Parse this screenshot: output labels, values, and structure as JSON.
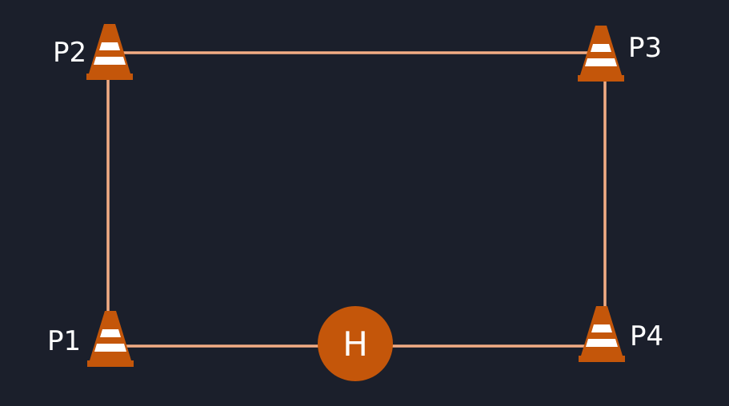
{
  "diagram": {
    "background_color": "#1b1f2b",
    "path_color": "#f2ac84",
    "cone_color": "#c4560a",
    "stripe_color": "#ffffff",
    "home_color": "#c4560a",
    "icon": "traffic-cone-icon"
  },
  "waypoints": [
    {
      "id": "p1",
      "label": "P1"
    },
    {
      "id": "p2",
      "label": "P2"
    },
    {
      "id": "p3",
      "label": "P3"
    },
    {
      "id": "p4",
      "label": "P4"
    }
  ],
  "home": {
    "label": "H"
  }
}
